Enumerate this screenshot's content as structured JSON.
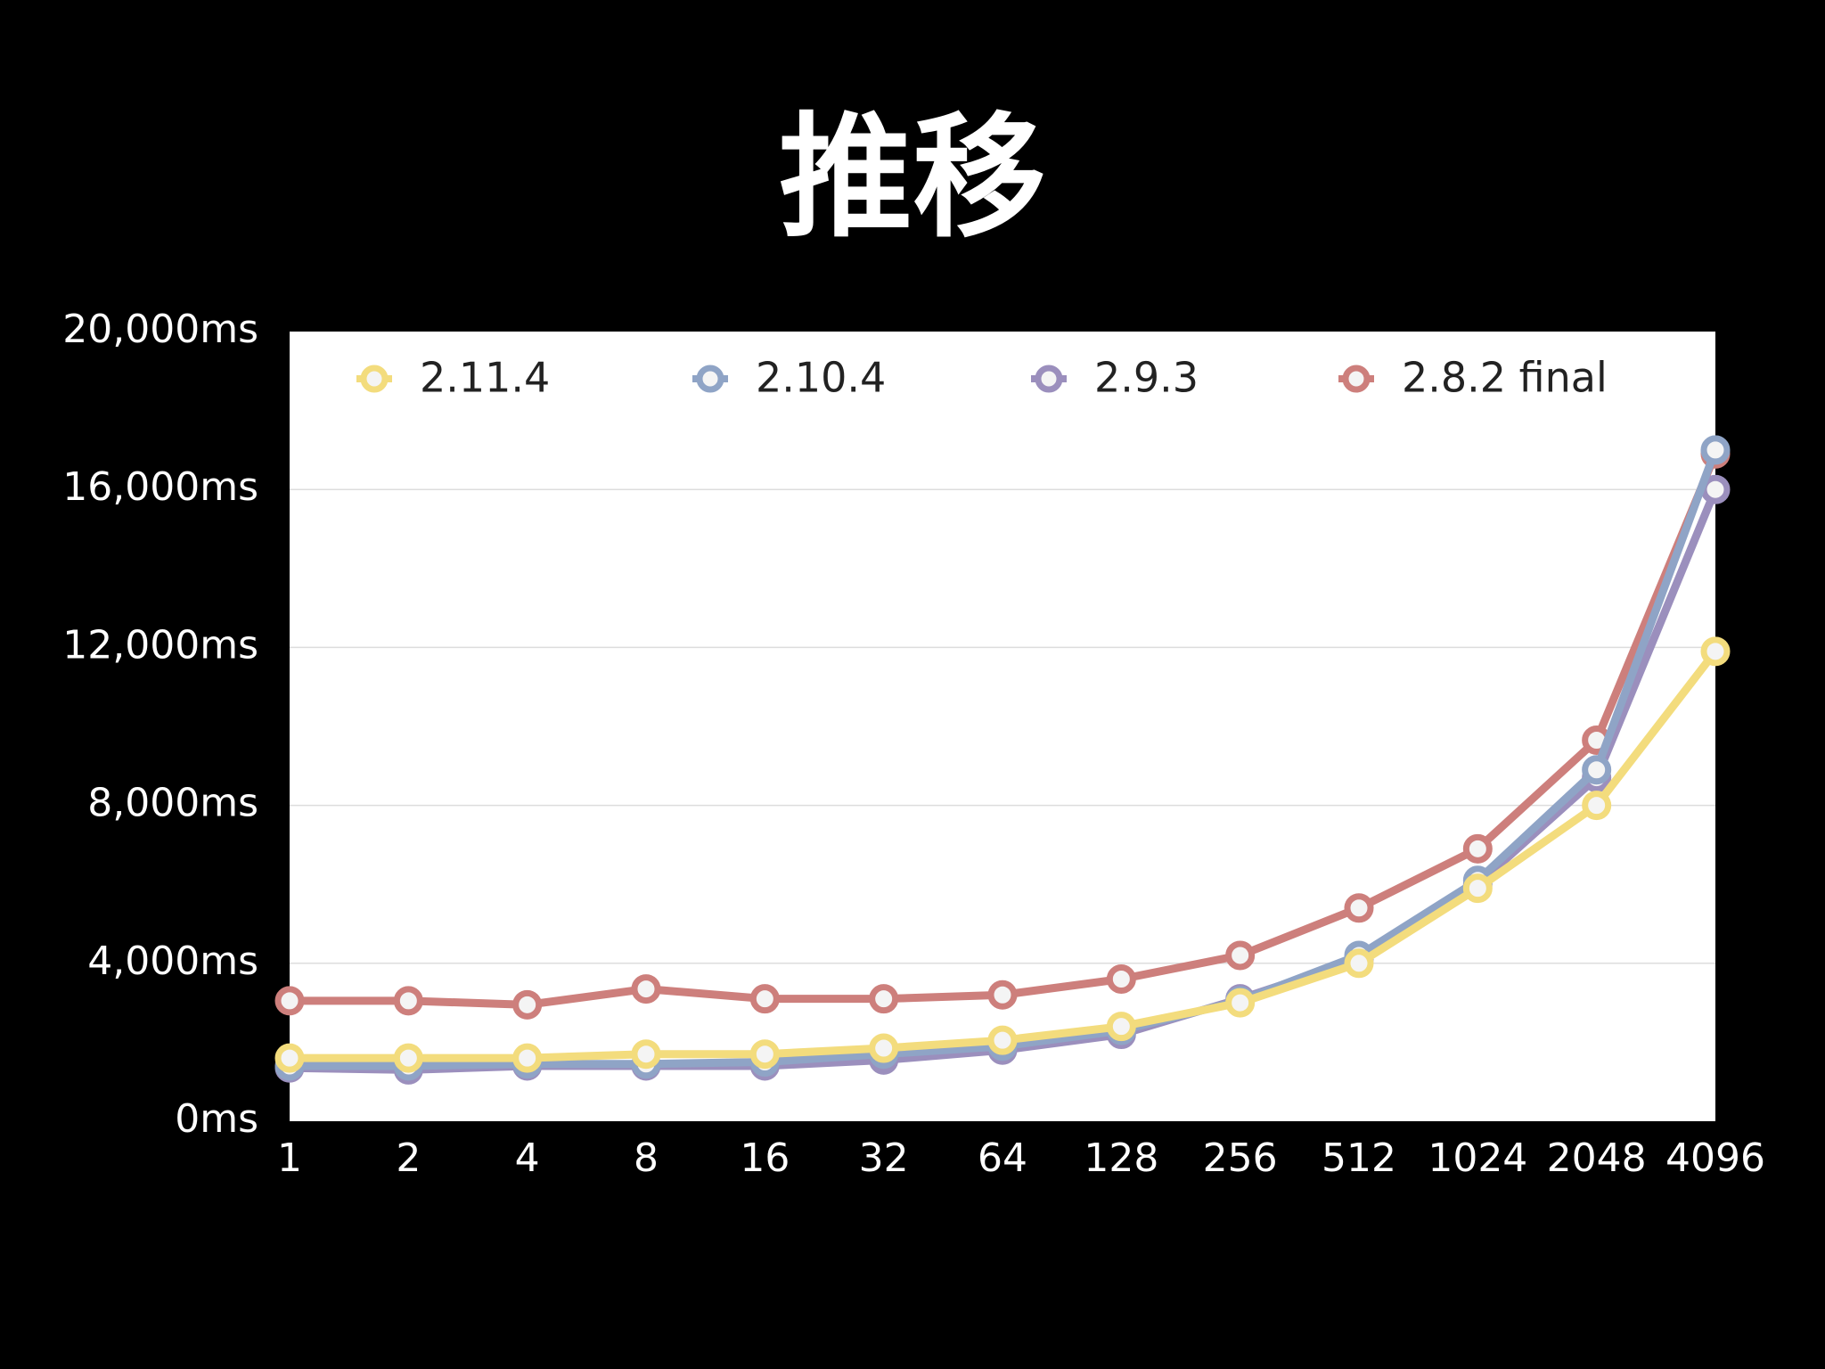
{
  "chart_data": {
    "type": "line",
    "title": "推移",
    "categories": [
      "1",
      "2",
      "4",
      "8",
      "16",
      "32",
      "64",
      "128",
      "256",
      "512",
      "1024",
      "2048",
      "4096"
    ],
    "series": [
      {
        "name": "2.11.4",
        "color": "#f3dc7d",
        "values": [
          1600,
          1600,
          1600,
          1700,
          1700,
          1850,
          2050,
          2400,
          3000,
          4000,
          5900,
          8000,
          11900
        ]
      },
      {
        "name": "2.10.4",
        "color": "#8fa4c6",
        "values": [
          1400,
          1400,
          1450,
          1450,
          1500,
          1700,
          1900,
          2300,
          3050,
          4200,
          6100,
          8900,
          17000
        ]
      },
      {
        "name": "2.9.3",
        "color": "#9b8fbd",
        "values": [
          1350,
          1300,
          1400,
          1400,
          1400,
          1550,
          1800,
          2200,
          3100,
          4100,
          6000,
          8700,
          16000
        ]
      },
      {
        "name": "2.8.2 final",
        "color": "#cd7f7c",
        "values": [
          3050,
          3050,
          2950,
          3350,
          3100,
          3100,
          3200,
          3600,
          4200,
          5400,
          6900,
          9650,
          16900
        ]
      }
    ],
    "ylim": [
      0,
      20000
    ],
    "yticks": [
      {
        "value": 0,
        "label": "0ms"
      },
      {
        "value": 4000,
        "label": "4,000ms"
      },
      {
        "value": 8000,
        "label": "8,000ms"
      },
      {
        "value": 12000,
        "label": "12,000ms"
      },
      {
        "value": 16000,
        "label": "16,000ms"
      },
      {
        "value": 20000,
        "label": "20,000ms"
      }
    ],
    "grid": true,
    "legend": "top"
  }
}
